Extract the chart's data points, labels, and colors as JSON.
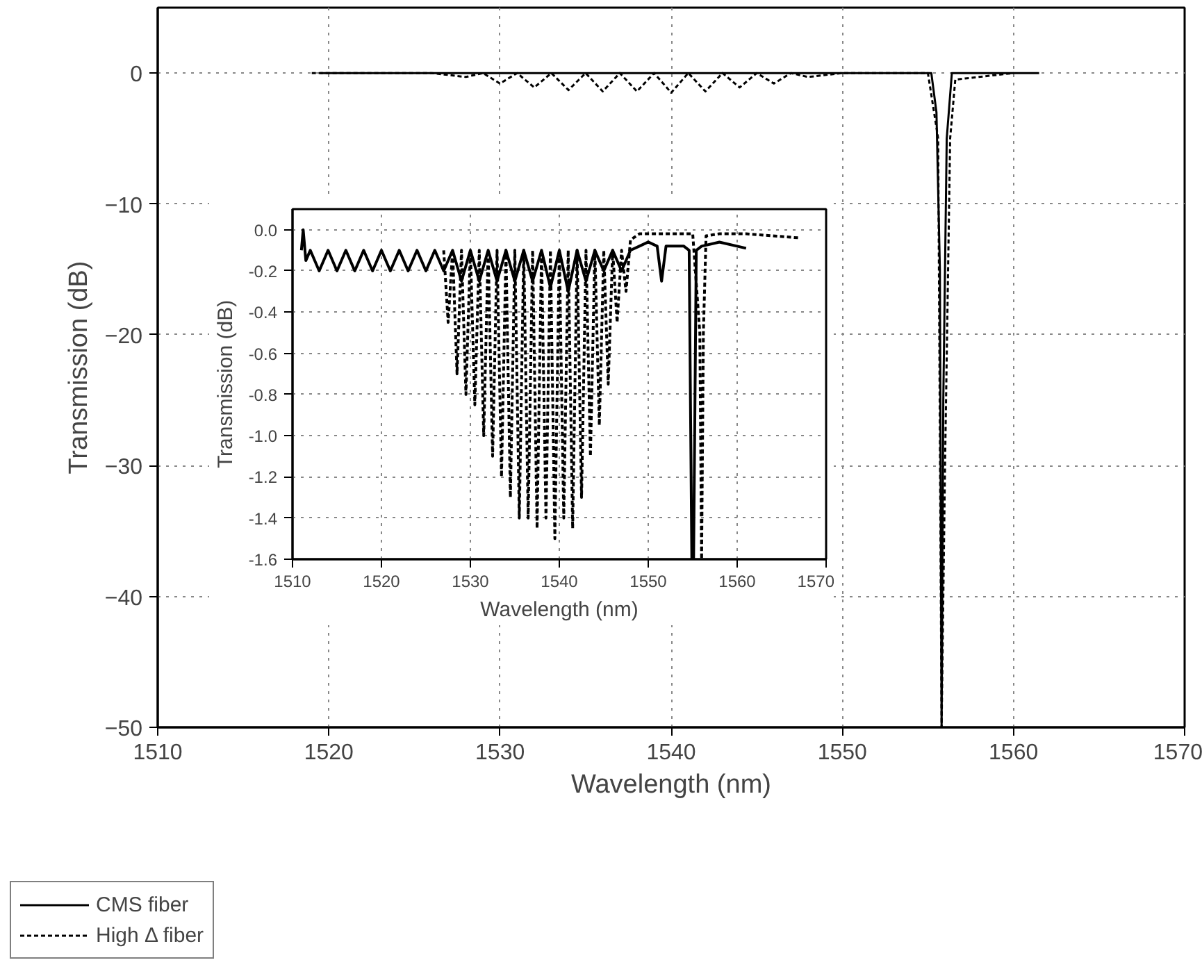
{
  "chart_data": [
    {
      "type": "line",
      "xlabel": "Wavelength (nm)",
      "ylabel": "Transmission (dB)",
      "xlim": [
        1510,
        1570
      ],
      "ylim": [
        -50,
        5
      ],
      "xticks": [
        1510,
        1520,
        1530,
        1540,
        1550,
        1560,
        1570
      ],
      "yticks": [
        0,
        -10,
        -20,
        -30,
        -40,
        -50
      ],
      "grid": true,
      "legend": "bottom left",
      "series": [
        {
          "name": "CMS fiber",
          "color": "#000000",
          "line_style": "solid",
          "x": [
            1519.5,
            1530,
            1540,
            1550,
            1552,
            1555.2,
            1555.5,
            1555.7,
            1555.8,
            1555.9,
            1556.1,
            1556.4,
            1561.5
          ],
          "values": [
            0,
            0,
            0,
            0,
            0,
            0,
            -3,
            -15,
            -50,
            -25,
            -5,
            0,
            0
          ]
        },
        {
          "name": "High Δ fiber",
          "color": "#000000",
          "line_style": "dotted",
          "x": [
            1519,
            1526,
            1528,
            1529,
            1530,
            1531,
            1532,
            1533,
            1534,
            1535,
            1536,
            1537,
            1538,
            1539,
            1540,
            1541,
            1542,
            1543,
            1544,
            1545,
            1546,
            1547,
            1548,
            1550,
            1555,
            1555.6,
            1555.8,
            1556.0,
            1556.3,
            1556.6,
            1560
          ],
          "values": [
            0,
            0,
            -0.3,
            0,
            -0.8,
            0,
            -1.1,
            0,
            -1.3,
            0,
            -1.4,
            0,
            -1.4,
            0,
            -1.5,
            0,
            -1.4,
            0,
            -1.1,
            0,
            -0.8,
            0,
            -0.3,
            0,
            0,
            -5,
            -50,
            -30,
            -5,
            -0.5,
            0
          ]
        }
      ]
    },
    {
      "type": "line",
      "xlabel": "Wavelength (nm)",
      "ylabel": "Transmission (dB)",
      "xlim": [
        1510,
        1570
      ],
      "ylim": [
        -1.6,
        0.1
      ],
      "xticks": [
        1510,
        1520,
        1530,
        1540,
        1550,
        1560,
        1570
      ],
      "yticks": [
        {
          "value": 0,
          "label": "0.0"
        },
        {
          "value": -0.2,
          "label": "-0.2"
        },
        {
          "value": -0.4,
          "label": "-0.4"
        },
        {
          "value": -0.6,
          "label": "-0.6"
        },
        {
          "value": -0.8,
          "label": "-0.8"
        },
        {
          "value": -1.0,
          "label": "-1.0"
        },
        {
          "value": -1.2,
          "label": "-1.2"
        },
        {
          "value": -1.4,
          "label": "-1.4"
        },
        {
          "value": -1.6,
          "label": "-1.6"
        }
      ],
      "grid": true,
      "series": [
        {
          "color": "#000000",
          "line_style": "solid",
          "x": [
            1511,
            1511.2,
            1511.5,
            1512,
            1513,
            1514,
            1515,
            1516,
            1517,
            1518,
            1519,
            1520,
            1521,
            1522,
            1523,
            1524,
            1525,
            1526,
            1527,
            1528,
            1529,
            1530,
            1531,
            1532,
            1533,
            1534,
            1535,
            1536,
            1537,
            1538,
            1539,
            1540,
            1541,
            1542,
            1543,
            1544,
            1545,
            1546,
            1547,
            1548,
            1549,
            1550,
            1551,
            1551.5,
            1552,
            1554,
            1554.6,
            1554.9,
            1555.1,
            1555.4,
            1556,
            1558,
            1561
          ],
          "values": [
            -0.1,
            0.0,
            -0.15,
            -0.1,
            -0.2,
            -0.1,
            -0.2,
            -0.1,
            -0.2,
            -0.1,
            -0.2,
            -0.1,
            -0.2,
            -0.1,
            -0.2,
            -0.1,
            -0.2,
            -0.1,
            -0.2,
            -0.1,
            -0.25,
            -0.1,
            -0.25,
            -0.1,
            -0.25,
            -0.1,
            -0.25,
            -0.1,
            -0.25,
            -0.1,
            -0.28,
            -0.1,
            -0.3,
            -0.1,
            -0.25,
            -0.1,
            -0.2,
            -0.1,
            -0.2,
            -0.1,
            -0.08,
            -0.06,
            -0.08,
            -0.25,
            -0.08,
            -0.08,
            -0.1,
            -1.6,
            -1.6,
            -0.1,
            -0.08,
            -0.06,
            -0.09
          ]
        },
        {
          "color": "#000000",
          "line_style": "dotted",
          "x": [
            1527,
            1527.5,
            1528,
            1528.5,
            1529,
            1529.5,
            1530,
            1530.5,
            1531,
            1531.5,
            1532,
            1532.5,
            1533,
            1533.5,
            1534,
            1534.5,
            1535,
            1535.5,
            1536,
            1536.5,
            1537,
            1537.5,
            1538,
            1538.5,
            1539,
            1539.5,
            1540,
            1540.5,
            1541,
            1541.5,
            1542,
            1542.5,
            1543,
            1543.5,
            1544,
            1544.5,
            1545,
            1545.5,
            1546,
            1546.5,
            1547,
            1547.5,
            1548,
            1549,
            1551,
            1553,
            1555,
            1555.8,
            1556.0,
            1556.2,
            1556.5,
            1558,
            1561,
            1564,
            1567
          ],
          "values": [
            -0.1,
            -0.45,
            -0.1,
            -0.7,
            -0.1,
            -0.8,
            -0.1,
            -0.85,
            -0.1,
            -1.0,
            -0.1,
            -1.1,
            -0.1,
            -1.2,
            -0.1,
            -1.3,
            -0.1,
            -1.4,
            -0.1,
            -1.4,
            -0.1,
            -1.45,
            -0.1,
            -1.4,
            -0.1,
            -1.5,
            -0.1,
            -1.4,
            -0.1,
            -1.45,
            -0.1,
            -1.3,
            -0.1,
            -1.1,
            -0.1,
            -0.95,
            -0.1,
            -0.75,
            -0.1,
            -0.45,
            -0.1,
            -0.3,
            -0.05,
            -0.02,
            -0.02,
            -0.02,
            -0.02,
            -0.5,
            -1.6,
            -0.5,
            -0.03,
            -0.02,
            -0.02,
            -0.03,
            -0.04
          ]
        }
      ]
    }
  ]
}
